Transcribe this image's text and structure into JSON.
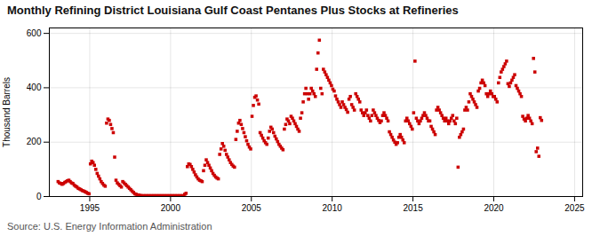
{
  "chart_data": {
    "type": "scatter",
    "title": "Monthly Refining District Louisiana Gulf Coast Pentanes Plus Stocks at Refineries",
    "ylabel": "Thousand Barrels",
    "source": "Source: U.S. Energy Information Administration",
    "color": "#cc0000",
    "marker": "square",
    "grid": true,
    "xlim": [
      1992.5,
      2025.5
    ],
    "ylim": [
      0,
      620
    ],
    "xticks": [
      1995,
      2000,
      2005,
      2010,
      2015,
      2020,
      2025
    ],
    "yticks": [
      0,
      200,
      400,
      600
    ],
    "x": [
      1993.0416666666667,
      1993.125,
      1993.2083333333333,
      1993.2916666666667,
      1993.375,
      1993.4583333333333,
      1993.5416666666667,
      1993.625,
      1993.7083333333333,
      1993.7916666666667,
      1993.875,
      1993.9583333333333,
      1994.0416666666667,
      1994.125,
      1994.2083333333333,
      1994.2916666666667,
      1994.375,
      1994.4583333333333,
      1994.5416666666667,
      1994.625,
      1994.7083333333333,
      1994.7916666666667,
      1994.875,
      1994.9583333333333,
      1995.0416666666667,
      1995.125,
      1995.2083333333333,
      1995.2916666666667,
      1995.375,
      1995.4583333333333,
      1995.5416666666667,
      1995.625,
      1995.7083333333333,
      1995.7916666666667,
      1995.875,
      1995.9583333333333,
      1996.0416666666667,
      1996.125,
      1996.2083333333333,
      1996.2916666666667,
      1996.375,
      1996.4583333333333,
      1996.5416666666667,
      1996.625,
      1996.7083333333333,
      1996.7916666666667,
      1996.875,
      1996.9583333333333,
      1997.0416666666667,
      1997.125,
      1997.2083333333333,
      1997.2916666666667,
      1997.375,
      1997.4583333333333,
      1997.5416666666667,
      1997.625,
      1997.7083333333333,
      1997.7916666666667,
      1997.875,
      1997.9583333333333,
      1998.0416666666667,
      1998.125,
      1998.2083333333333,
      1998.2916666666667,
      1998.375,
      1998.4583333333333,
      1998.5416666666667,
      1998.625,
      1998.7083333333333,
      1998.7916666666667,
      1998.875,
      1998.9583333333333,
      1999.0416666666667,
      1999.125,
      1999.2083333333333,
      1999.2916666666667,
      1999.375,
      1999.4583333333333,
      1999.5416666666667,
      1999.625,
      1999.7083333333333,
      1999.7916666666667,
      1999.875,
      1999.9583333333333,
      2000.0416666666667,
      2000.125,
      2000.2083333333333,
      2000.2916666666667,
      2000.375,
      2000.4583333333333,
      2000.5416666666667,
      2000.625,
      2000.7083333333333,
      2000.7916666666667,
      2000.875,
      2000.9583333333333,
      2001.0416666666667,
      2001.125,
      2001.2083333333333,
      2001.2916666666667,
      2001.375,
      2001.4583333333333,
      2001.5416666666667,
      2001.625,
      2001.7083333333333,
      2001.7916666666667,
      2001.875,
      2001.9583333333333,
      2002.0416666666667,
      2002.125,
      2002.2083333333333,
      2002.2916666666667,
      2002.375,
      2002.4583333333333,
      2002.5416666666667,
      2002.625,
      2002.7083333333333,
      2002.7916666666667,
      2002.875,
      2002.9583333333333,
      2003.0416666666667,
      2003.125,
      2003.2083333333333,
      2003.2916666666667,
      2003.375,
      2003.4583333333333,
      2003.5416666666667,
      2003.625,
      2003.7083333333333,
      2003.7916666666667,
      2003.875,
      2003.9583333333333,
      2004.0416666666667,
      2004.125,
      2004.2083333333333,
      2004.2916666666667,
      2004.375,
      2004.4583333333333,
      2004.5416666666667,
      2004.625,
      2004.7083333333333,
      2004.7916666666667,
      2004.875,
      2004.9583333333333,
      2005.0416666666667,
      2005.125,
      2005.2083333333333,
      2005.2916666666667,
      2005.375,
      2005.4583333333333,
      2005.5416666666667,
      2005.625,
      2005.7083333333333,
      2005.7916666666667,
      2005.875,
      2005.9583333333333,
      2006.0416666666667,
      2006.125,
      2006.2083333333333,
      2006.2916666666667,
      2006.375,
      2006.4583333333333,
      2006.5416666666667,
      2006.625,
      2006.7083333333333,
      2006.7916666666667,
      2006.875,
      2006.9583333333333,
      2007.0416666666667,
      2007.125,
      2007.2083333333333,
      2007.2916666666667,
      2007.375,
      2007.4583333333333,
      2007.5416666666667,
      2007.625,
      2007.7083333333333,
      2007.7916666666667,
      2007.875,
      2007.9583333333333,
      2008.0416666666667,
      2008.125,
      2008.2083333333333,
      2008.2916666666667,
      2008.375,
      2008.4583333333333,
      2008.5416666666667,
      2008.625,
      2008.7083333333333,
      2008.7916666666667,
      2008.875,
      2008.9583333333333,
      2009.0416666666667,
      2009.125,
      2009.2083333333333,
      2009.2916666666667,
      2009.375,
      2009.4583333333333,
      2009.5416666666667,
      2009.625,
      2009.7083333333333,
      2009.7916666666667,
      2009.875,
      2009.9583333333333,
      2010.0416666666667,
      2010.125,
      2010.2083333333333,
      2010.2916666666667,
      2010.375,
      2010.4583333333333,
      2010.5416666666667,
      2010.625,
      2010.7083333333333,
      2010.7916666666667,
      2010.875,
      2010.9583333333333,
      2011.0416666666667,
      2011.125,
      2011.2083333333333,
      2011.2916666666667,
      2011.375,
      2011.4583333333333,
      2011.5416666666667,
      2011.625,
      2011.7083333333333,
      2011.7916666666667,
      2011.875,
      2011.9583333333333,
      2012.0416666666667,
      2012.125,
      2012.2083333333333,
      2012.2916666666667,
      2012.375,
      2012.4583333333333,
      2012.5416666666667,
      2012.625,
      2012.7083333333333,
      2012.7916666666667,
      2012.875,
      2012.9583333333333,
      2013.0416666666667,
      2013.125,
      2013.2083333333333,
      2013.2916666666667,
      2013.375,
      2013.4583333333333,
      2013.5416666666667,
      2013.625,
      2013.7083333333333,
      2013.7916666666667,
      2013.875,
      2013.9583333333333,
      2014.0416666666667,
      2014.125,
      2014.2083333333333,
      2014.2916666666667,
      2014.375,
      2014.4583333333333,
      2014.5416666666667,
      2014.625,
      2014.7083333333333,
      2014.7916666666667,
      2014.875,
      2014.9583333333333,
      2015.0416666666667,
      2015.125,
      2015.2083333333333,
      2015.2916666666667,
      2015.375,
      2015.4583333333333,
      2015.5416666666667,
      2015.625,
      2015.7083333333333,
      2015.7916666666667,
      2015.875,
      2015.9583333333333,
      2016.0416666666667,
      2016.125,
      2016.2083333333333,
      2016.2916666666667,
      2016.375,
      2016.4583333333333,
      2016.5416666666667,
      2016.625,
      2016.7083333333333,
      2016.7916666666667,
      2016.875,
      2016.9583333333333,
      2017.0416666666667,
      2017.125,
      2017.2083333333333,
      2017.2916666666667,
      2017.375,
      2017.4583333333333,
      2017.5416666666667,
      2017.625,
      2017.7083333333333,
      2017.7916666666667,
      2017.875,
      2017.9583333333333,
      2018.0416666666667,
      2018.125,
      2018.2083333333333,
      2018.2916666666667,
      2018.375,
      2018.4583333333333,
      2018.5416666666667,
      2018.625,
      2018.7083333333333,
      2018.7916666666667,
      2018.875,
      2018.9583333333333,
      2019.0416666666667,
      2019.125,
      2019.2083333333333,
      2019.2916666666667,
      2019.375,
      2019.4583333333333,
      2019.5416666666667,
      2019.625,
      2019.7083333333333,
      2019.7916666666667,
      2019.875,
      2019.9583333333333,
      2020.0416666666667,
      2020.125,
      2020.2083333333333,
      2020.2916666666667,
      2020.375,
      2020.4583333333333,
      2020.5416666666667,
      2020.625,
      2020.7083333333333,
      2020.7916666666667,
      2020.875,
      2020.9583333333333,
      2021.0416666666667,
      2021.125,
      2021.2083333333333,
      2021.2916666666667,
      2021.375,
      2021.4583333333333,
      2021.5416666666667,
      2021.625,
      2021.7083333333333,
      2021.7916666666667,
      2021.875,
      2021.9583333333333,
      2022.0416666666667,
      2022.125,
      2022.2083333333333,
      2022.2916666666667,
      2022.375,
      2022.4583333333333,
      2022.5416666666667,
      2022.625,
      2022.7083333333333,
      2022.7916666666667,
      2022.875,
      2022.9583333333333
    ],
    "values": [
      55,
      50,
      48,
      45,
      48,
      52,
      55,
      58,
      60,
      55,
      50,
      48,
      42,
      38,
      35,
      30,
      28,
      25,
      22,
      20,
      18,
      15,
      12,
      10,
      120,
      130,
      125,
      115,
      100,
      85,
      75,
      65,
      55,
      48,
      42,
      38,
      270,
      285,
      280,
      265,
      250,
      235,
      145,
      60,
      50,
      45,
      40,
      35,
      55,
      50,
      45,
      40,
      35,
      30,
      25,
      20,
      15,
      10,
      8,
      6,
      5,
      4,
      3,
      3,
      3,
      3,
      3,
      3,
      3,
      3,
      3,
      3,
      3,
      3,
      3,
      3,
      3,
      3,
      3,
      3,
      3,
      3,
      3,
      3,
      3,
      3,
      3,
      3,
      3,
      3,
      3,
      3,
      3,
      3,
      8,
      12,
      110,
      120,
      118,
      110,
      100,
      90,
      80,
      72,
      65,
      60,
      58,
      55,
      95,
      115,
      135,
      125,
      115,
      105,
      95,
      85,
      78,
      72,
      68,
      65,
      155,
      175,
      195,
      185,
      170,
      155,
      145,
      135,
      125,
      118,
      112,
      108,
      210,
      240,
      270,
      280,
      265,
      250,
      235,
      220,
      205,
      192,
      182,
      175,
      295,
      335,
      365,
      370,
      355,
      340,
      235,
      225,
      215,
      205,
      198,
      192,
      215,
      240,
      255,
      248,
      235,
      222,
      212,
      202,
      192,
      185,
      178,
      172,
      248,
      265,
      285,
      278,
      268,
      295,
      288,
      278,
      268,
      258,
      248,
      240,
      288,
      308,
      348,
      378,
      398,
      378,
      358,
      378,
      398,
      388,
      378,
      368,
      468,
      528,
      575,
      398,
      378,
      468,
      458,
      448,
      438,
      428,
      418,
      408,
      395,
      388,
      370,
      358,
      348,
      338,
      328,
      348,
      338,
      328,
      320,
      310,
      358,
      368,
      338,
      328,
      318,
      378,
      368,
      358,
      348,
      318,
      308,
      298,
      308,
      318,
      298,
      288,
      278,
      298,
      318,
      308,
      298,
      288,
      280,
      272,
      278,
      298,
      308,
      298,
      288,
      278,
      238,
      228,
      218,
      208,
      200,
      192,
      198,
      218,
      228,
      218,
      208,
      198,
      278,
      288,
      278,
      268,
      258,
      248,
      308,
      498,
      288,
      278,
      268,
      278,
      288,
      298,
      308,
      298,
      288,
      278,
      278,
      258,
      248,
      238,
      228,
      318,
      328,
      318,
      308,
      298,
      288,
      278,
      288,
      278,
      268,
      278,
      288,
      298,
      278,
      268,
      288,
      108,
      218,
      228,
      238,
      248,
      318,
      328,
      318,
      348,
      378,
      368,
      358,
      348,
      338,
      328,
      388,
      398,
      418,
      428,
      418,
      408,
      378,
      368,
      378,
      388,
      378,
      368,
      368,
      358,
      348,
      418,
      438,
      458,
      468,
      478,
      488,
      498,
      415,
      405,
      418,
      428,
      438,
      448,
      408,
      398,
      388,
      378,
      368,
      295,
      285,
      278,
      288,
      298,
      288,
      278,
      268,
      508,
      458,
      165,
      178,
      148,
      290,
      280
    ]
  }
}
